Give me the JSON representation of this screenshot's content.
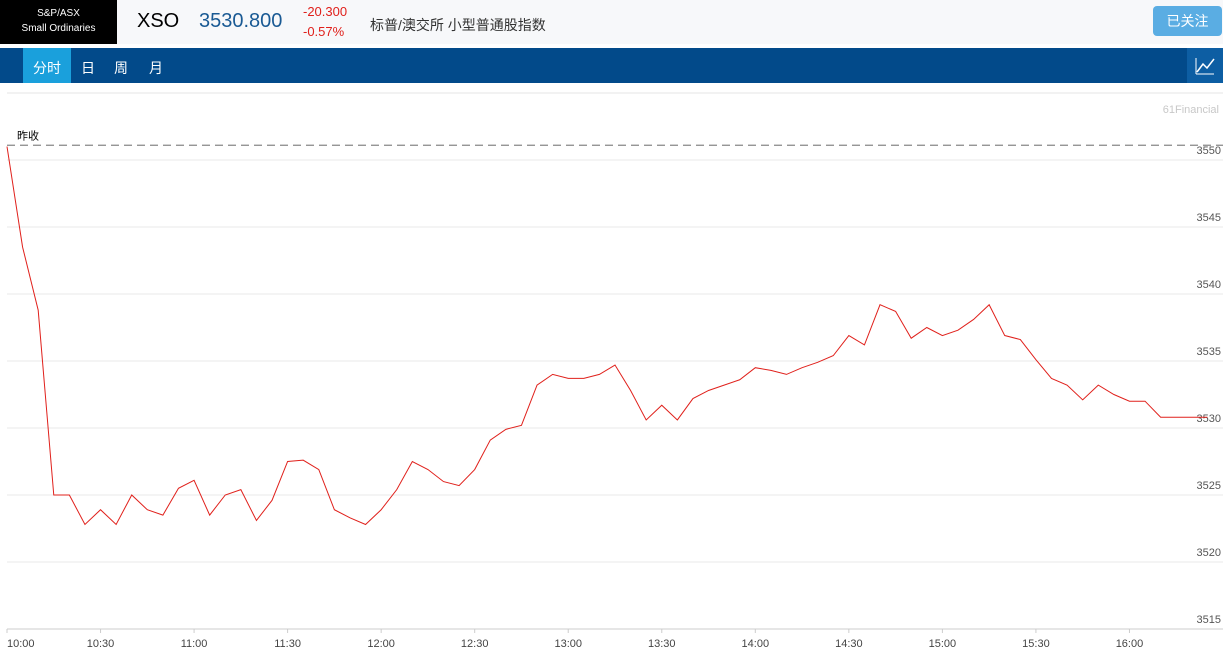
{
  "header": {
    "badge": [
      "S&P/ASX",
      "Small Ordinaries"
    ],
    "symbol": "XSO",
    "price": "3530.800",
    "change": "-20.300",
    "change_pct": "-0.57%",
    "name": "标普/澳交所 小型普通股指数",
    "follow_button": "已关注"
  },
  "tabs": [
    "分时",
    "日",
    "周",
    "月"
  ],
  "chart_data": {
    "type": "line",
    "watermark": "61Financial",
    "ref_label": "昨收",
    "ref_value": 3551.1,
    "x": [
      "10:00",
      "10:05",
      "10:10",
      "10:15",
      "10:20",
      "10:25",
      "10:30",
      "10:35",
      "10:40",
      "10:45",
      "10:50",
      "10:55",
      "11:00",
      "11:05",
      "11:10",
      "11:15",
      "11:20",
      "11:25",
      "11:30",
      "11:35",
      "11:40",
      "11:45",
      "11:50",
      "11:55",
      "12:00",
      "12:05",
      "12:10",
      "12:15",
      "12:20",
      "12:25",
      "12:30",
      "12:35",
      "12:40",
      "12:45",
      "12:50",
      "12:55",
      "13:00",
      "13:05",
      "13:10",
      "13:15",
      "13:20",
      "13:25",
      "13:30",
      "13:35",
      "13:40",
      "13:45",
      "13:50",
      "13:55",
      "14:00",
      "14:05",
      "14:10",
      "14:15",
      "14:20",
      "14:25",
      "14:30",
      "14:35",
      "14:40",
      "14:45",
      "14:50",
      "14:55",
      "15:00",
      "15:05",
      "15:10",
      "15:15",
      "15:20",
      "15:25",
      "15:30",
      "15:35",
      "15:40",
      "15:45",
      "15:50",
      "15:55",
      "16:00",
      "16:05",
      "16:10",
      "16:15",
      "16:20",
      "16:25"
    ],
    "series": [
      {
        "name": "XSO",
        "color": "#e0201b",
        "values": [
          3551.0,
          3543.5,
          3538.8,
          3525,
          3525,
          3522.8,
          3523.9,
          3522.8,
          3525,
          3523.9,
          3523.5,
          3525.5,
          3526.1,
          3523.5,
          3525,
          3525.4,
          3523.1,
          3524.6,
          3527.5,
          3527.6,
          3526.9,
          3523.9,
          3523.3,
          3522.8,
          3523.9,
          3525.4,
          3527.5,
          3526.9,
          3526,
          3525.7,
          3526.9,
          3529.1,
          3529.9,
          3530.2,
          3533.2,
          3534,
          3533.7,
          3533.7,
          3534,
          3534.7,
          3532.8,
          3530.6,
          3531.7,
          3530.6,
          3532.2,
          3532.8,
          3533.2,
          3533.6,
          3534.5,
          3534.3,
          3534,
          3534.5,
          3534.9,
          3535.4,
          3536.9,
          3536.2,
          3539.2,
          3538.7,
          3536.7,
          3537.5,
          3536.9,
          3537.3,
          3538.1,
          3539.2,
          3536.9,
          3536.6,
          3535.1,
          3533.7,
          3533.2,
          3532.1,
          3533.2,
          3532.5,
          3532,
          3532,
          3530.8,
          3530.8,
          3530.8,
          3530.8
        ]
      }
    ],
    "xlim": [
      "10:00",
      "16:30"
    ],
    "xticks": [
      "10:00",
      "10:30",
      "11:00",
      "11:30",
      "12:00",
      "12:30",
      "13:00",
      "13:30",
      "14:00",
      "14:30",
      "15:00",
      "15:30",
      "16:00"
    ],
    "ylim": [
      3515,
      3555
    ],
    "yticks": [
      3515,
      3520,
      3525,
      3530,
      3535,
      3540,
      3545,
      3550
    ],
    "grid": true
  }
}
